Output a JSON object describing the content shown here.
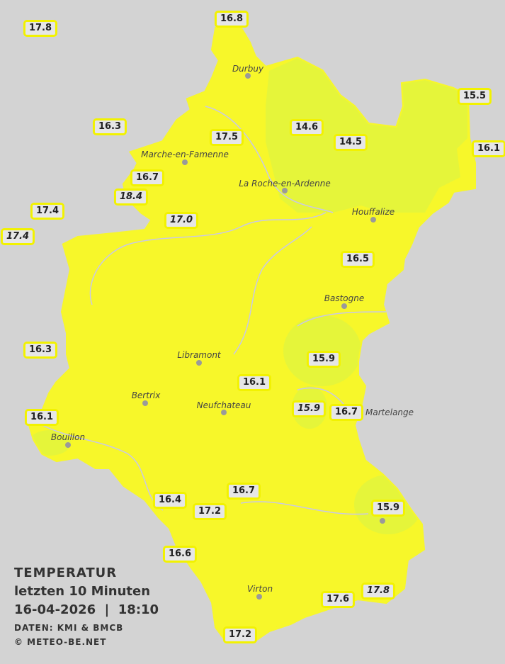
{
  "colors": {
    "background": "#d3d3d3",
    "warm_zone": "#f7f72a",
    "cool_zone": "#e5f53a",
    "label_border": "#f2f200"
  },
  "legend": {
    "title": "TEMPERATUR",
    "subtitle": "letzten 10 Minuten",
    "datetime": "16-04-2026  |  18:10",
    "source": "DATEN: KMI & BMCB",
    "copyright": "© METEO-BE.NET"
  },
  "towns": [
    "Durbuy",
    "Marche-en-Famenne",
    "La Roche-en-Ardenne",
    "Houffalize",
    "Bastogne",
    "Libramont",
    "Bertrix",
    "Neufchateau",
    "Bouillon",
    "Martelange",
    "Virton"
  ],
  "stations": [
    {
      "value": "17.8",
      "italic": false
    },
    {
      "value": "16.8",
      "italic": false
    },
    {
      "value": "15.5",
      "italic": false
    },
    {
      "value": "16.3",
      "italic": false
    },
    {
      "value": "17.5",
      "italic": false
    },
    {
      "value": "14.6",
      "italic": false
    },
    {
      "value": "14.5",
      "italic": false
    },
    {
      "value": "16.1",
      "italic": false
    },
    {
      "value": "16.7",
      "italic": false
    },
    {
      "value": "18.4",
      "italic": true
    },
    {
      "value": "17.4",
      "italic": false
    },
    {
      "value": "17.4",
      "italic": true
    },
    {
      "value": "17.0",
      "italic": true
    },
    {
      "value": "16.5",
      "italic": false
    },
    {
      "value": "16.3",
      "italic": false
    },
    {
      "value": "15.9",
      "italic": false
    },
    {
      "value": "16.1",
      "italic": false
    },
    {
      "value": "15.9",
      "italic": true
    },
    {
      "value": "16.7",
      "italic": false
    },
    {
      "value": "16.1",
      "italic": false
    },
    {
      "value": "16.7",
      "italic": false
    },
    {
      "value": "16.4",
      "italic": false
    },
    {
      "value": "17.2",
      "italic": false
    },
    {
      "value": "15.9",
      "italic": false
    },
    {
      "value": "16.6",
      "italic": false
    },
    {
      "value": "17.6",
      "italic": false
    },
    {
      "value": "17.8",
      "italic": true
    },
    {
      "value": "17.2",
      "italic": false
    }
  ]
}
